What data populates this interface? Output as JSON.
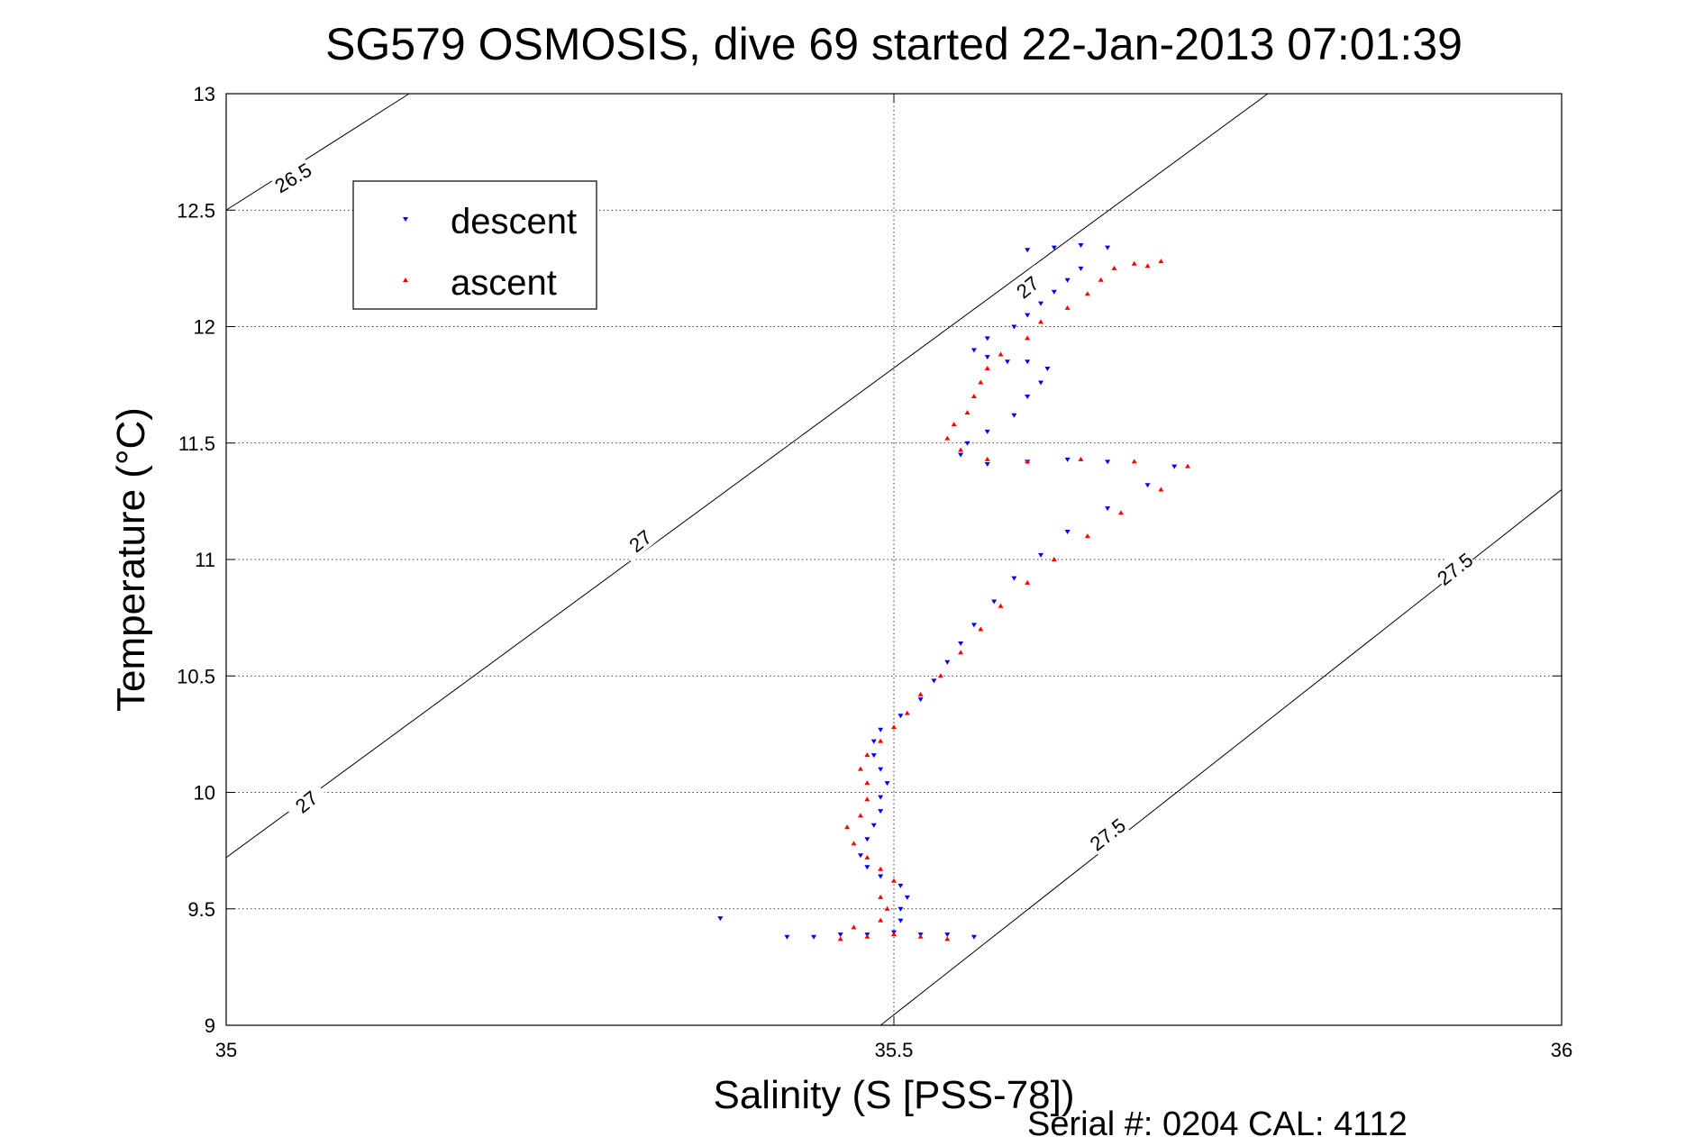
{
  "chart_data": {
    "type": "scatter",
    "title": "SG579 OSMOSIS, dive 69 started 22-Jan-2013 07:01:39",
    "xlabel": "Salinity (S [PSS-78])",
    "ylabel": "Temperature (°C)",
    "xlim": [
      35,
      36
    ],
    "ylim": [
      9,
      13
    ],
    "x_ticks": [
      "35",
      "35.5",
      "36"
    ],
    "y_ticks": [
      "9",
      "9.5",
      "10",
      "10.5",
      "11",
      "11.5",
      "12",
      "12.5",
      "13"
    ],
    "grid": true,
    "legend_position": "top-left",
    "footer": "Serial #: 0204  CAL: 4112",
    "series": [
      {
        "name": "descent",
        "marker": "down-triangle",
        "color": "#0000ff",
        "points": [
          [
            35.37,
            9.46
          ],
          [
            35.42,
            9.38
          ],
          [
            35.44,
            9.38
          ],
          [
            35.46,
            9.39
          ],
          [
            35.48,
            9.39
          ],
          [
            35.5,
            9.4
          ],
          [
            35.52,
            9.39
          ],
          [
            35.54,
            9.39
          ],
          [
            35.56,
            9.38
          ],
          [
            35.505,
            9.45
          ],
          [
            35.505,
            9.5
          ],
          [
            35.51,
            9.55
          ],
          [
            35.505,
            9.6
          ],
          [
            35.49,
            9.64
          ],
          [
            35.48,
            9.68
          ],
          [
            35.475,
            9.73
          ],
          [
            35.48,
            9.8
          ],
          [
            35.485,
            9.86
          ],
          [
            35.49,
            9.92
          ],
          [
            35.49,
            9.98
          ],
          [
            35.495,
            10.04
          ],
          [
            35.49,
            10.1
          ],
          [
            35.485,
            10.16
          ],
          [
            35.485,
            10.22
          ],
          [
            35.49,
            10.27
          ],
          [
            35.505,
            10.33
          ],
          [
            35.52,
            10.4
          ],
          [
            35.53,
            10.48
          ],
          [
            35.54,
            10.56
          ],
          [
            35.55,
            10.64
          ],
          [
            35.56,
            10.72
          ],
          [
            35.575,
            10.82
          ],
          [
            35.59,
            10.92
          ],
          [
            35.61,
            11.02
          ],
          [
            35.63,
            11.12
          ],
          [
            35.66,
            11.22
          ],
          [
            35.69,
            11.32
          ],
          [
            35.71,
            11.4
          ],
          [
            35.66,
            11.42
          ],
          [
            35.63,
            11.43
          ],
          [
            35.6,
            11.42
          ],
          [
            35.57,
            11.41
          ],
          [
            35.55,
            11.45
          ],
          [
            35.555,
            11.5
          ],
          [
            35.57,
            11.55
          ],
          [
            35.59,
            11.62
          ],
          [
            35.6,
            11.7
          ],
          [
            35.61,
            11.76
          ],
          [
            35.615,
            11.82
          ],
          [
            35.6,
            11.85
          ],
          [
            35.585,
            11.85
          ],
          [
            35.57,
            11.87
          ],
          [
            35.56,
            11.9
          ],
          [
            35.57,
            11.95
          ],
          [
            35.59,
            12.0
          ],
          [
            35.6,
            12.05
          ],
          [
            35.61,
            12.1
          ],
          [
            35.62,
            12.15
          ],
          [
            35.63,
            12.2
          ],
          [
            35.64,
            12.25
          ],
          [
            35.6,
            12.33
          ],
          [
            35.62,
            12.34
          ],
          [
            35.64,
            12.35
          ],
          [
            35.66,
            12.34
          ]
        ]
      },
      {
        "name": "ascent",
        "marker": "up-triangle",
        "color": "#ff0000",
        "points": [
          [
            35.46,
            9.37
          ],
          [
            35.48,
            9.38
          ],
          [
            35.5,
            9.39
          ],
          [
            35.52,
            9.38
          ],
          [
            35.54,
            9.37
          ],
          [
            35.47,
            9.42
          ],
          [
            35.49,
            9.45
          ],
          [
            35.495,
            9.5
          ],
          [
            35.49,
            9.55
          ],
          [
            35.5,
            9.62
          ],
          [
            35.49,
            9.67
          ],
          [
            35.48,
            9.72
          ],
          [
            35.47,
            9.78
          ],
          [
            35.465,
            9.85
          ],
          [
            35.475,
            9.9
          ],
          [
            35.48,
            9.97
          ],
          [
            35.48,
            10.04
          ],
          [
            35.475,
            10.1
          ],
          [
            35.48,
            10.16
          ],
          [
            35.49,
            10.22
          ],
          [
            35.5,
            10.28
          ],
          [
            35.51,
            10.34
          ],
          [
            35.52,
            10.42
          ],
          [
            35.535,
            10.5
          ],
          [
            35.55,
            10.6
          ],
          [
            35.565,
            10.7
          ],
          [
            35.58,
            10.8
          ],
          [
            35.6,
            10.9
          ],
          [
            35.62,
            11.0
          ],
          [
            35.645,
            11.1
          ],
          [
            35.67,
            11.2
          ],
          [
            35.7,
            11.3
          ],
          [
            35.72,
            11.4
          ],
          [
            35.68,
            11.42
          ],
          [
            35.64,
            11.43
          ],
          [
            35.6,
            11.42
          ],
          [
            35.57,
            11.43
          ],
          [
            35.55,
            11.47
          ],
          [
            35.54,
            11.52
          ],
          [
            35.545,
            11.58
          ],
          [
            35.555,
            11.63
          ],
          [
            35.56,
            11.7
          ],
          [
            35.565,
            11.76
          ],
          [
            35.57,
            11.82
          ],
          [
            35.58,
            11.88
          ],
          [
            35.6,
            11.95
          ],
          [
            35.61,
            12.02
          ],
          [
            35.63,
            12.08
          ],
          [
            35.645,
            12.14
          ],
          [
            35.655,
            12.2
          ],
          [
            35.665,
            12.25
          ],
          [
            35.68,
            12.27
          ],
          [
            35.7,
            12.28
          ],
          [
            35.69,
            12.26
          ]
        ]
      }
    ],
    "isopycnals": [
      {
        "label": "26.5",
        "x1": 35.0,
        "y1": 12.5,
        "x2": 35.137,
        "y2": 13.0
      },
      {
        "label": "27",
        "x1": 35.0,
        "y1": 9.72,
        "x2": 35.78,
        "y2": 13.0
      },
      {
        "label": "27.5",
        "x1": 35.49,
        "y1": 9.0,
        "x2": 36.0,
        "y2": 11.3
      }
    ],
    "contour_labels": [
      {
        "label": "26.5",
        "x": 35.05,
        "y": 12.64,
        "angle": -31
      },
      {
        "label": "27",
        "x": 35.6,
        "y": 12.17,
        "angle": -39
      },
      {
        "label": "27",
        "x": 35.31,
        "y": 11.08,
        "angle": -39
      },
      {
        "label": "27",
        "x": 35.06,
        "y": 9.96,
        "angle": -39
      },
      {
        "label": "27.5",
        "x": 35.92,
        "y": 10.96,
        "angle": -38
      },
      {
        "label": "27.5",
        "x": 35.66,
        "y": 9.82,
        "angle": -38
      }
    ]
  }
}
